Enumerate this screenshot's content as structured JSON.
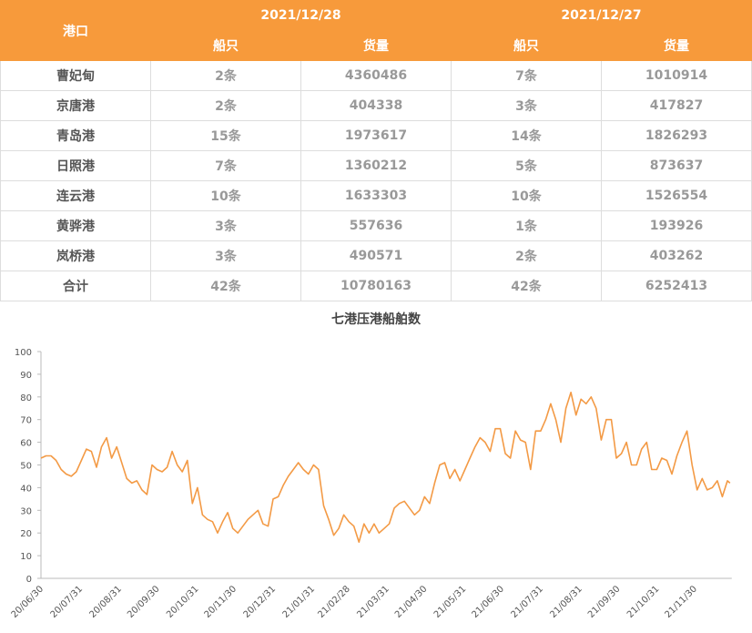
{
  "table": {
    "header": {
      "port": "港口",
      "groups": [
        {
          "date": "2021/12/28",
          "columns": [
            "船只",
            "货量"
          ]
        },
        {
          "date": "2021/12/27",
          "columns": [
            "船只",
            "货量"
          ]
        }
      ]
    },
    "rows": [
      [
        "曹妃甸",
        "2条",
        "4360486",
        "7条",
        "1010914"
      ],
      [
        "京唐港",
        "2条",
        "404338",
        "3条",
        "417827"
      ],
      [
        "青岛港",
        "15条",
        "1973617",
        "14条",
        "1826293"
      ],
      [
        "日照港",
        "7条",
        "1360212",
        "5条",
        "873637"
      ],
      [
        "连云港",
        "10条",
        "1633303",
        "10条",
        "1526554"
      ],
      [
        "黄骅港",
        "3条",
        "557636",
        "1条",
        "193926"
      ],
      [
        "岚桥港",
        "3条",
        "490571",
        "2条",
        "403262"
      ],
      [
        "合计",
        "42条",
        "10780163",
        "42条",
        "6252413"
      ]
    ]
  },
  "chart_data": {
    "type": "line",
    "title": "七港压港船舶数",
    "color": "#f39a45",
    "x": [
      "20/06/30",
      "20/07/04",
      "20/07/08",
      "20/07/12",
      "20/07/16",
      "20/07/20",
      "20/07/24",
      "20/07/28",
      "20/08/01",
      "20/08/05",
      "20/08/09",
      "20/08/13",
      "20/08/17",
      "20/08/21",
      "20/08/25",
      "20/08/29",
      "20/09/02",
      "20/09/06",
      "20/09/10",
      "20/09/14",
      "20/09/18",
      "20/09/22",
      "20/09/26",
      "20/09/30",
      "20/10/04",
      "20/10/08",
      "20/10/12",
      "20/10/16",
      "20/10/20",
      "20/10/24",
      "20/10/28",
      "20/11/01",
      "20/11/05",
      "20/11/09",
      "20/11/13",
      "20/11/17",
      "20/11/21",
      "20/11/25",
      "20/11/29",
      "20/12/03",
      "20/12/07",
      "20/12/11",
      "20/12/15",
      "20/12/19",
      "20/12/23",
      "20/12/27",
      "20/12/31",
      "21/01/04",
      "21/01/08",
      "21/01/12",
      "21/01/16",
      "21/01/20",
      "21/01/24",
      "21/01/28",
      "21/02/01",
      "21/02/05",
      "21/02/09",
      "21/02/13",
      "21/02/17",
      "21/02/21",
      "21/02/25",
      "21/03/01",
      "21/03/05",
      "21/03/09",
      "21/03/13",
      "21/03/17",
      "21/03/21",
      "21/03/25",
      "21/03/29",
      "21/04/02",
      "21/04/06",
      "21/04/10",
      "21/04/14",
      "21/04/18",
      "21/04/22",
      "21/04/26",
      "21/04/30",
      "21/05/04",
      "21/05/08",
      "21/05/12",
      "21/05/16",
      "21/05/20",
      "21/05/24",
      "21/05/28",
      "21/06/01",
      "21/06/05",
      "21/06/09",
      "21/06/13",
      "21/06/17",
      "21/06/21",
      "21/06/25",
      "21/06/29",
      "21/07/03",
      "21/07/07",
      "21/07/11",
      "21/07/15",
      "21/07/19",
      "21/07/23",
      "21/07/27",
      "21/07/31",
      "21/08/04",
      "21/08/08",
      "21/08/12",
      "21/08/16",
      "21/08/20",
      "21/08/24",
      "21/08/28",
      "21/09/01",
      "21/09/05",
      "21/09/09",
      "21/09/13",
      "21/09/17",
      "21/09/21",
      "21/09/25",
      "21/09/29",
      "21/10/03",
      "21/10/07",
      "21/10/11",
      "21/10/15",
      "21/10/19",
      "21/10/23",
      "21/10/27",
      "21/10/31",
      "21/11/04",
      "21/11/08",
      "21/11/12",
      "21/11/16",
      "21/11/20",
      "21/11/24",
      "21/11/28",
      "21/12/02",
      "21/12/06",
      "21/12/10",
      "21/12/14",
      "21/12/18",
      "21/12/22",
      "21/12/26",
      "21/12/28"
    ],
    "values": [
      53,
      54,
      54,
      52,
      48,
      46,
      45,
      47,
      52,
      57,
      56,
      49,
      58,
      62,
      53,
      58,
      51,
      44,
      42,
      43,
      39,
      37,
      50,
      48,
      47,
      49,
      56,
      50,
      47,
      52,
      33,
      40,
      28,
      26,
      25,
      20,
      25,
      29,
      22,
      20,
      23,
      26,
      28,
      30,
      24,
      23,
      35,
      36,
      41,
      45,
      48,
      51,
      48,
      46,
      50,
      48,
      32,
      26,
      19,
      22,
      28,
      25,
      23,
      16,
      24,
      20,
      24,
      20,
      22,
      24,
      31,
      33,
      34,
      31,
      28,
      30,
      36,
      33,
      42,
      50,
      51,
      44,
      48,
      43,
      48,
      53,
      58,
      62,
      60,
      56,
      66,
      66,
      55,
      53,
      65,
      61,
      60,
      48,
      65,
      65,
      70,
      77,
      70,
      60,
      75,
      82,
      72,
      79,
      77,
      80,
      75,
      61,
      70,
      70,
      53,
      55,
      60,
      50,
      50,
      57,
      60,
      48,
      48,
      53,
      52,
      46,
      54,
      60,
      65,
      50,
      39,
      44,
      39,
      40,
      43,
      36,
      43,
      42
    ],
    "ylim": [
      0,
      100
    ],
    "yticks": [
      0,
      10,
      20,
      30,
      40,
      50,
      60,
      70,
      80,
      90,
      100
    ],
    "xticks": [
      "20/06/30",
      "20/07/31",
      "20/08/31",
      "20/09/30",
      "20/10/31",
      "20/11/30",
      "20/12/31",
      "21/01/31",
      "21/02/28",
      "21/03/31",
      "21/04/30",
      "21/05/31",
      "21/06/30",
      "21/07/31",
      "21/08/31",
      "21/09/30",
      "21/10/31",
      "21/11/30"
    ]
  }
}
